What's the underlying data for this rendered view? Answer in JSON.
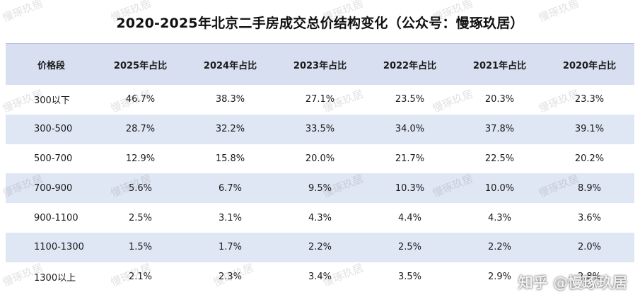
{
  "title": "2020-2025年北京二手房成交总价结构变化（公众号：慢琢玖居）",
  "table": {
    "headers": [
      "价格段",
      "2025年占比",
      "2024年占比",
      "2023年占比",
      "2022年占比",
      "2021年占比",
      "2020年占比"
    ],
    "rows": [
      [
        "300以下",
        "46.7%",
        "38.3%",
        "27.1%",
        "23.5%",
        "20.3%",
        "23.3%"
      ],
      [
        "300-500",
        "28.7%",
        "32.2%",
        "33.5%",
        "34.0%",
        "37.8%",
        "39.1%"
      ],
      [
        "500-700",
        "12.9%",
        "15.8%",
        "20.0%",
        "21.7%",
        "22.5%",
        "20.2%"
      ],
      [
        "700-900",
        "5.6%",
        "6.7%",
        "9.5%",
        "10.3%",
        "10.0%",
        "8.9%"
      ],
      [
        "900-1100",
        "2.5%",
        "3.1%",
        "4.3%",
        "4.4%",
        "4.3%",
        "3.6%"
      ],
      [
        "1100-1300",
        "1.5%",
        "1.7%",
        "2.2%",
        "2.5%",
        "2.2%",
        "2.0%"
      ],
      [
        "1300以上",
        "2.1%",
        "2.3%",
        "3.4%",
        "3.5%",
        "2.9%",
        "2.8%"
      ]
    ]
  },
  "watermark": "慢琢玖居",
  "zhihu_watermark": "知乎 @慢琢玖居",
  "colors": {
    "header_bg": "#d7dff0",
    "stripe_bg": "#dfe6f4",
    "rule": "#b7c2dc"
  }
}
